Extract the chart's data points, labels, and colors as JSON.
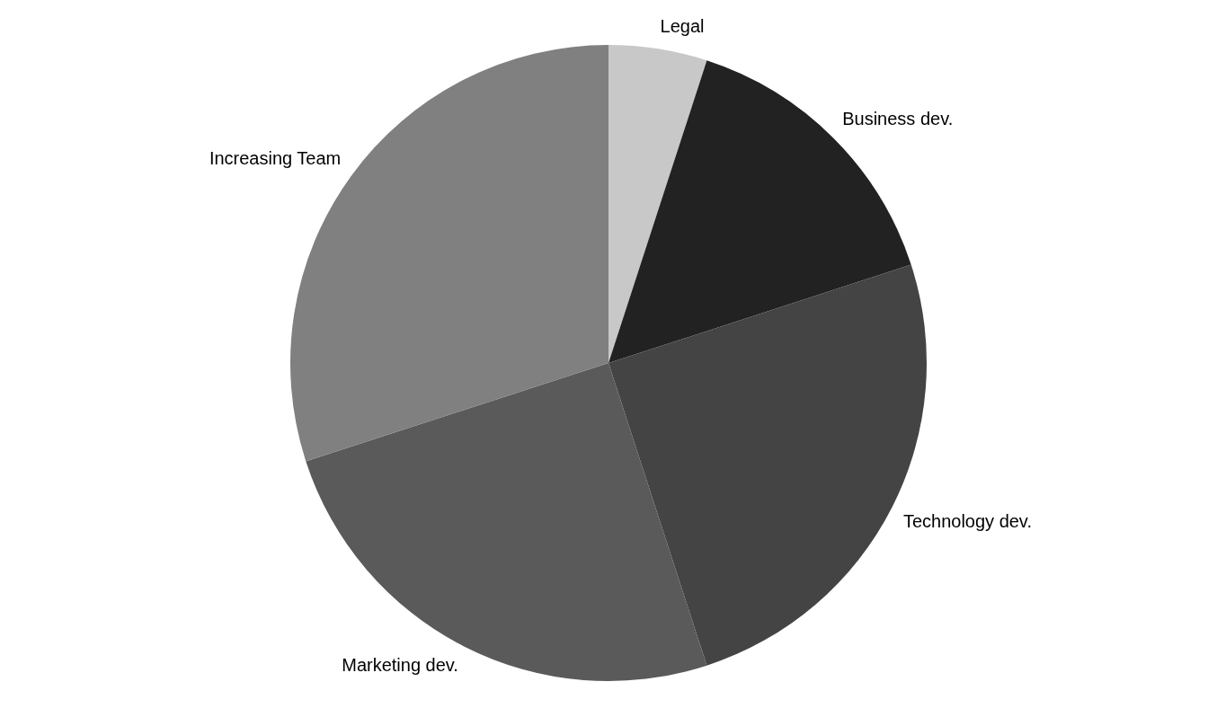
{
  "chart_data": {
    "type": "pie",
    "categories": [
      "Legal",
      "Business dev.",
      "Technology dev.",
      "Marketing dev.",
      "Increasing Team"
    ],
    "values": [
      5,
      15,
      25,
      25,
      30
    ],
    "colors": [
      "#c8c8c8",
      "#222222",
      "#444444",
      "#5a5a5a",
      "#808080"
    ],
    "legend": false
  }
}
